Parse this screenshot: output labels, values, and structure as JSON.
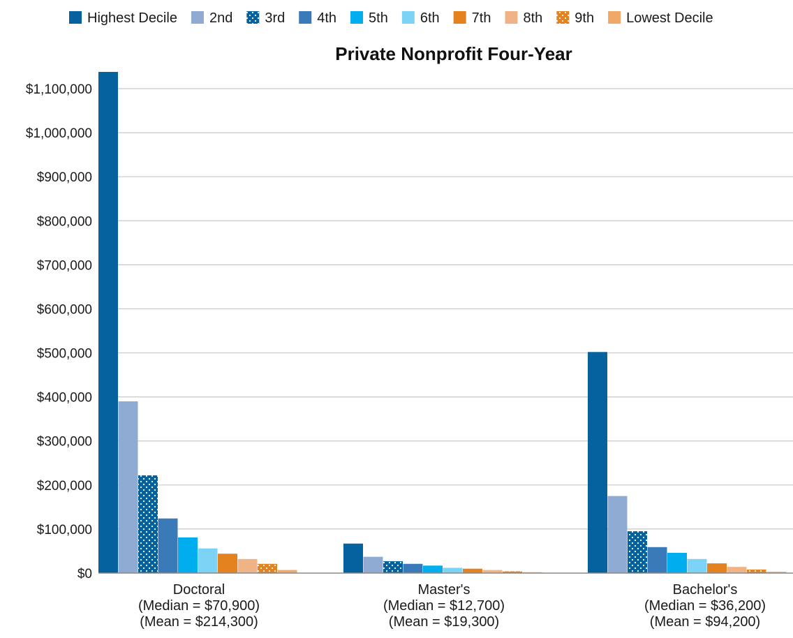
{
  "chart_data": {
    "type": "bar",
    "title": "Private Nonprofit Four-Year",
    "ylim": [
      0,
      1100000
    ],
    "yticks": [
      0,
      100000,
      200000,
      300000,
      400000,
      500000,
      600000,
      700000,
      800000,
      900000,
      1000000,
      1100000
    ],
    "ytick_labels": [
      "$0",
      "$100,000",
      "$200,000",
      "$300,000",
      "$400,000",
      "$500,000",
      "$600,000",
      "$700,000",
      "$800,000",
      "$900,000",
      "$1,000,000",
      "$1,100,000"
    ],
    "grid": true,
    "legend_position": "top",
    "categories": [
      {
        "label": "Doctoral",
        "median": "(Median = $70,900)",
        "mean": "(Mean = $214,300)"
      },
      {
        "label": "Master's",
        "median": "(Median = $12,700)",
        "mean": "(Mean = $19,300)"
      },
      {
        "label": "Bachelor's",
        "median": "(Median = $36,200)",
        "mean": "(Mean = $94,200)"
      }
    ],
    "series": [
      {
        "name": "Highest Decile",
        "color": "#05629f",
        "pattern": "solid",
        "values": [
          1138000,
          67000,
          502000
        ]
      },
      {
        "name": "2nd",
        "color": "#8fabd4",
        "pattern": "solid",
        "values": [
          390000,
          37000,
          175000
        ]
      },
      {
        "name": "3rd",
        "color": "#05629f",
        "pattern": "dots",
        "values": [
          222000,
          27000,
          95000
        ]
      },
      {
        "name": "4th",
        "color": "#3a7ab9",
        "pattern": "solid",
        "values": [
          124000,
          21000,
          59000
        ]
      },
      {
        "name": "5th",
        "color": "#00aeef",
        "pattern": "solid",
        "values": [
          81000,
          17000,
          46000
        ]
      },
      {
        "name": "6th",
        "color": "#7dd3f5",
        "pattern": "solid",
        "values": [
          56000,
          12000,
          32000
        ]
      },
      {
        "name": "7th",
        "color": "#e4821f",
        "pattern": "solid",
        "values": [
          44000,
          10000,
          22000
        ]
      },
      {
        "name": "8th",
        "color": "#f0b385",
        "pattern": "solid",
        "values": [
          32000,
          7000,
          14000
        ]
      },
      {
        "name": "9th",
        "color": "#e4821f",
        "pattern": "dots",
        "values": [
          21000,
          4000,
          8000
        ]
      },
      {
        "name": "Lowest Decile",
        "color": "#f0a868",
        "pattern": "solid",
        "values": [
          7000,
          2000,
          3000
        ]
      }
    ]
  }
}
